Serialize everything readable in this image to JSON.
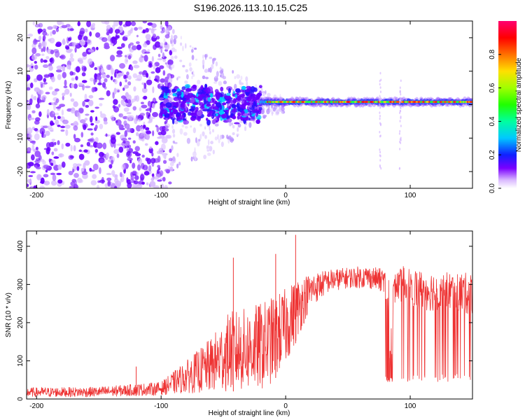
{
  "figure": {
    "title": "S196.2026.113.10.15.C25"
  },
  "chart_data": [
    {
      "type": "heatmap",
      "name": "spectrogram",
      "title": "S196.2026.113.10.15.C25",
      "xlabel": "Height of straight line (km)",
      "ylabel": "Frequency (Hz)",
      "xlim": [
        -208,
        150
      ],
      "ylim": [
        -25,
        25
      ],
      "xticks": [
        -200,
        -100,
        0,
        100
      ],
      "yticks": [
        -20,
        -10,
        0,
        10,
        20
      ],
      "colorbar": {
        "label": "Normalized spectral amplitude",
        "range": [
          0,
          1
        ],
        "ticks": [
          0.0,
          0.2,
          0.4,
          0.6,
          0.8
        ],
        "tick_labels": [
          "0.0",
          "0.2",
          "0.4",
          "0.6",
          "0.8"
        ]
      },
      "description_points": {
        "noise_region_x": [
          -208,
          -100
        ],
        "burst_region_x": [
          -100,
          -20
        ],
        "narrowband_line_x": [
          -20,
          150
        ],
        "narrowband_line_freq_hz": 0.8,
        "vertical_streaks_x": [
          76,
          92
        ]
      }
    },
    {
      "type": "line",
      "name": "snr",
      "xlabel": "Height of straight line (km)",
      "ylabel": "SNR (10 * v/v)",
      "xlim": [
        -208,
        150
      ],
      "ylim": [
        0,
        440
      ],
      "xticks": [
        -200,
        -100,
        0,
        100
      ],
      "yticks": [
        0,
        100,
        200,
        300,
        400
      ],
      "color": "#ee3333",
      "envelope": {
        "x": [
          -208,
          -150,
          -120,
          -100,
          -80,
          -60,
          -45,
          -30,
          -15,
          0,
          10,
          20,
          35,
          50,
          65,
          80,
          84,
          88,
          95,
          110,
          130,
          150
        ],
        "low": [
          5,
          5,
          8,
          10,
          15,
          15,
          20,
          20,
          25,
          90,
          160,
          240,
          280,
          290,
          290,
          280,
          50,
          260,
          250,
          230,
          230,
          220
        ],
        "high": [
          30,
          32,
          40,
          45,
          100,
          160,
          230,
          240,
          260,
          290,
          320,
          330,
          340,
          345,
          350,
          340,
          300,
          330,
          350,
          340,
          335,
          330
        ]
      },
      "spikes": [
        {
          "x": -120,
          "y": 85
        },
        {
          "x": -42,
          "y": 370
        },
        {
          "x": -8,
          "y": 380
        },
        {
          "x": 8,
          "y": 430
        },
        {
          "x": 76,
          "y": 315
        }
      ],
      "dropouts": [
        {
          "x": 82,
          "y": 45
        },
        {
          "x": 83,
          "y": 50
        }
      ]
    }
  ]
}
